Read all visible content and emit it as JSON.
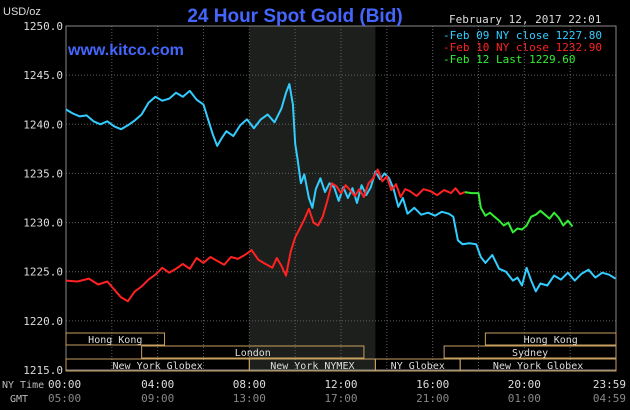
{
  "chart_data": {
    "type": "line",
    "title": "24 Hour Spot Gold (Bid)",
    "watermark": "www.kitco.com",
    "timestamp": "February 12, 2017 22:01",
    "y_unit": "USD/oz",
    "ylim": [
      1215,
      1250
    ],
    "y_ticks": [
      "1250.0",
      "1245.0",
      "1240.0",
      "1235.0",
      "1230.0",
      "1225.0",
      "1220.0",
      "1215.0"
    ],
    "x_ticks_ny": [
      "00:00",
      "04:00",
      "08:00",
      "12:00",
      "16:00",
      "20:00",
      "23:59"
    ],
    "x_ticks_gmt": [
      "05:00",
      "09:00",
      "13:00",
      "17:00",
      "21:00",
      "01:00",
      "04:59"
    ],
    "x_row_labels": {
      "ny": "NY Time",
      "gmt": "GMT"
    },
    "grid": true,
    "legend": {
      "placement": "top-right"
    },
    "colors": {
      "feb09": "#33ccff",
      "feb10": "#ff2222",
      "feb12": "#33ee33",
      "title": "#4466ff",
      "grid": "#606060",
      "text": "#dddddd",
      "session_box": "#c8a060"
    },
    "highlight": {
      "label": "NY NYMEX hours",
      "x_start": 8.0,
      "x_end": 13.5
    },
    "series": [
      {
        "name": "Feb 09 NY close 1227.80",
        "legend_text": "-Feb 09 NY close 1227.80",
        "color": "#33ccff",
        "points": [
          [
            0,
            1241.5
          ],
          [
            0.3,
            1241.1
          ],
          [
            0.6,
            1240.8
          ],
          [
            0.9,
            1240.9
          ],
          [
            1.2,
            1240.3
          ],
          [
            1.5,
            1240.0
          ],
          [
            1.8,
            1240.3
          ],
          [
            2.1,
            1239.8
          ],
          [
            2.4,
            1239.5
          ],
          [
            2.7,
            1239.9
          ],
          [
            3.0,
            1240.4
          ],
          [
            3.3,
            1241.0
          ],
          [
            3.6,
            1242.2
          ],
          [
            3.9,
            1242.8
          ],
          [
            4.2,
            1242.4
          ],
          [
            4.5,
            1242.6
          ],
          [
            4.8,
            1243.2
          ],
          [
            5.1,
            1242.8
          ],
          [
            5.4,
            1243.4
          ],
          [
            5.7,
            1242.5
          ],
          [
            6.0,
            1242.0
          ],
          [
            6.2,
            1240.5
          ],
          [
            6.4,
            1239.0
          ],
          [
            6.6,
            1237.8
          ],
          [
            6.8,
            1238.6
          ],
          [
            7.0,
            1239.3
          ],
          [
            7.3,
            1238.8
          ],
          [
            7.6,
            1239.9
          ],
          [
            7.9,
            1240.5
          ],
          [
            8.2,
            1239.6
          ],
          [
            8.5,
            1240.5
          ],
          [
            8.8,
            1241.0
          ],
          [
            9.1,
            1240.2
          ],
          [
            9.4,
            1241.6
          ],
          [
            9.6,
            1243.2
          ],
          [
            9.75,
            1244.1
          ],
          [
            9.9,
            1242.0
          ],
          [
            10.0,
            1238.0
          ],
          [
            10.1,
            1236.5
          ],
          [
            10.25,
            1234.0
          ],
          [
            10.4,
            1234.9
          ],
          [
            10.6,
            1232.5
          ],
          [
            10.75,
            1231.5
          ],
          [
            10.9,
            1233.4
          ],
          [
            11.1,
            1234.5
          ],
          [
            11.3,
            1233.1
          ],
          [
            11.5,
            1234.0
          ],
          [
            11.7,
            1233.6
          ],
          [
            11.9,
            1232.2
          ],
          [
            12.1,
            1233.6
          ],
          [
            12.3,
            1232.5
          ],
          [
            12.5,
            1233.5
          ],
          [
            12.7,
            1232.0
          ],
          [
            12.9,
            1233.8
          ],
          [
            13.1,
            1232.8
          ],
          [
            13.3,
            1233.6
          ],
          [
            13.5,
            1235.2
          ],
          [
            13.7,
            1234.4
          ],
          [
            13.9,
            1235.0
          ],
          [
            14.1,
            1234.5
          ],
          [
            14.3,
            1233.4
          ],
          [
            14.5,
            1231.6
          ],
          [
            14.7,
            1232.5
          ],
          [
            14.9,
            1230.9
          ],
          [
            15.2,
            1231.5
          ],
          [
            15.5,
            1230.8
          ],
          [
            15.8,
            1231.0
          ],
          [
            16.1,
            1230.7
          ],
          [
            16.4,
            1231.1
          ],
          [
            16.7,
            1230.9
          ],
          [
            16.9,
            1230.6
          ],
          [
            17.1,
            1228.2
          ],
          [
            17.3,
            1227.8
          ],
          [
            17.6,
            1227.9
          ],
          [
            17.9,
            1227.8
          ],
          [
            18.1,
            1226.5
          ],
          [
            18.3,
            1225.9
          ],
          [
            18.6,
            1226.7
          ],
          [
            18.9,
            1225.3
          ],
          [
            19.2,
            1225.0
          ],
          [
            19.5,
            1224.1
          ],
          [
            19.7,
            1224.4
          ],
          [
            19.9,
            1223.6
          ],
          [
            20.1,
            1225.4
          ],
          [
            20.3,
            1224.1
          ],
          [
            20.5,
            1223.0
          ],
          [
            20.7,
            1223.8
          ],
          [
            21.0,
            1223.6
          ],
          [
            21.3,
            1224.6
          ],
          [
            21.6,
            1224.2
          ],
          [
            21.9,
            1224.9
          ],
          [
            22.2,
            1224.1
          ],
          [
            22.5,
            1224.8
          ],
          [
            22.8,
            1225.2
          ],
          [
            23.1,
            1224.4
          ],
          [
            23.4,
            1224.9
          ],
          [
            23.7,
            1224.7
          ],
          [
            23.98,
            1224.3
          ]
        ]
      },
      {
        "name": "Feb 10 NY close 1232.90",
        "legend_text": "-Feb 10 NY close 1232.90",
        "color": "#ff2222",
        "points": [
          [
            0,
            1224.1
          ],
          [
            0.5,
            1224.0
          ],
          [
            1.0,
            1224.3
          ],
          [
            1.4,
            1223.7
          ],
          [
            1.8,
            1224.0
          ],
          [
            2.1,
            1223.2
          ],
          [
            2.4,
            1222.4
          ],
          [
            2.7,
            1222.0
          ],
          [
            3.0,
            1223.0
          ],
          [
            3.3,
            1223.5
          ],
          [
            3.6,
            1224.2
          ],
          [
            3.9,
            1224.7
          ],
          [
            4.2,
            1225.4
          ],
          [
            4.5,
            1224.9
          ],
          [
            4.8,
            1225.3
          ],
          [
            5.1,
            1225.8
          ],
          [
            5.4,
            1225.3
          ],
          [
            5.7,
            1226.4
          ],
          [
            6.0,
            1225.9
          ],
          [
            6.3,
            1226.5
          ],
          [
            6.6,
            1226.1
          ],
          [
            6.9,
            1225.7
          ],
          [
            7.2,
            1226.5
          ],
          [
            7.5,
            1226.3
          ],
          [
            7.8,
            1226.7
          ],
          [
            8.1,
            1227.2
          ],
          [
            8.4,
            1226.2
          ],
          [
            8.7,
            1225.8
          ],
          [
            9.0,
            1225.4
          ],
          [
            9.2,
            1226.4
          ],
          [
            9.4,
            1225.6
          ],
          [
            9.6,
            1224.6
          ],
          [
            9.8,
            1227.0
          ],
          [
            10.0,
            1228.5
          ],
          [
            10.2,
            1229.4
          ],
          [
            10.4,
            1230.3
          ],
          [
            10.6,
            1231.4
          ],
          [
            10.8,
            1230.0
          ],
          [
            11.0,
            1229.7
          ],
          [
            11.2,
            1230.6
          ],
          [
            11.4,
            1232.2
          ],
          [
            11.6,
            1234.0
          ],
          [
            11.8,
            1233.7
          ],
          [
            12.0,
            1233.0
          ],
          [
            12.2,
            1233.8
          ],
          [
            12.4,
            1233.3
          ],
          [
            12.6,
            1232.7
          ],
          [
            12.8,
            1233.4
          ],
          [
            13.0,
            1232.6
          ],
          [
            13.2,
            1234.0
          ],
          [
            13.4,
            1234.5
          ],
          [
            13.6,
            1235.4
          ],
          [
            13.8,
            1234.2
          ],
          [
            14.0,
            1234.7
          ],
          [
            14.2,
            1233.3
          ],
          [
            14.4,
            1233.9
          ],
          [
            14.6,
            1232.6
          ],
          [
            14.8,
            1233.4
          ],
          [
            15.0,
            1233.2
          ],
          [
            15.3,
            1232.7
          ],
          [
            15.6,
            1233.4
          ],
          [
            15.9,
            1233.2
          ],
          [
            16.2,
            1232.8
          ],
          [
            16.5,
            1233.3
          ],
          [
            16.8,
            1233.0
          ],
          [
            17.0,
            1233.5
          ],
          [
            17.2,
            1232.9
          ],
          [
            17.4,
            1233.1
          ]
        ]
      },
      {
        "name": "Feb 12 Last 1229.60",
        "legend_text": "-Feb 12 Last 1229.60",
        "color": "#33ee33",
        "points": [
          [
            17.4,
            1233.1
          ],
          [
            17.7,
            1233.0
          ],
          [
            18.0,
            1233.0
          ],
          [
            18.1,
            1231.5
          ],
          [
            18.3,
            1230.7
          ],
          [
            18.5,
            1231.0
          ],
          [
            18.7,
            1230.6
          ],
          [
            18.9,
            1230.2
          ],
          [
            19.1,
            1229.7
          ],
          [
            19.3,
            1230.0
          ],
          [
            19.5,
            1229.0
          ],
          [
            19.7,
            1229.4
          ],
          [
            19.9,
            1229.3
          ],
          [
            20.1,
            1229.7
          ],
          [
            20.3,
            1230.6
          ],
          [
            20.5,
            1230.8
          ],
          [
            20.7,
            1231.2
          ],
          [
            20.9,
            1230.8
          ],
          [
            21.1,
            1230.4
          ],
          [
            21.3,
            1231.0
          ],
          [
            21.5,
            1230.5
          ],
          [
            21.7,
            1229.7
          ],
          [
            21.9,
            1230.2
          ],
          [
            22.1,
            1229.6
          ]
        ]
      }
    ],
    "session_rows": [
      [
        {
          "label": "Hong Kong",
          "start": -3.0,
          "end": 4.3
        },
        {
          "label": "Hong Kong",
          "start": 18.3,
          "end": 24.0
        }
      ],
      [
        {
          "label": "London",
          "start": 3.3,
          "end": 13.0
        },
        {
          "label": "Sydney",
          "start": 16.5,
          "end": 24.0
        }
      ],
      [
        {
          "label": "New York Globex",
          "start": -1.0,
          "end": 8.0
        },
        {
          "label": "New York NYMEX",
          "start": 8.0,
          "end": 13.5
        },
        {
          "label": "NY Globex",
          "start": 13.5,
          "end": 17.2
        },
        {
          "label": "New York Globex",
          "start": 17.2,
          "end": 24.0
        }
      ]
    ]
  }
}
